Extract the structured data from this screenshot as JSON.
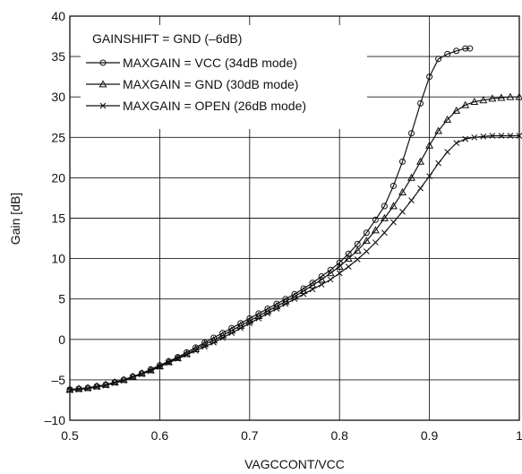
{
  "chart_data": {
    "type": "line",
    "title": "",
    "xlabel": "VAGCCONT/VCC",
    "ylabel": "Gain [dB]",
    "xlim": [
      0.5,
      1.0
    ],
    "ylim": [
      -10,
      40
    ],
    "xticks": [
      "0.5",
      "0.6",
      "0.7",
      "0.8",
      "0.9",
      "1"
    ],
    "yticks": [
      "–10",
      "–5",
      "0",
      "5",
      "10",
      "15",
      "20",
      "25",
      "30",
      "35",
      "40"
    ],
    "grid": true,
    "legend_title": "GAINSHIFT = GND (–6dB)",
    "legend_position": "top-left",
    "series": [
      {
        "name": "MAXGAIN = VCC (34dB mode)",
        "marker": "circle",
        "x": [
          0.5,
          0.51,
          0.52,
          0.53,
          0.54,
          0.55,
          0.56,
          0.57,
          0.58,
          0.59,
          0.6,
          0.61,
          0.62,
          0.63,
          0.64,
          0.65,
          0.66,
          0.67,
          0.68,
          0.69,
          0.7,
          0.71,
          0.72,
          0.73,
          0.74,
          0.75,
          0.76,
          0.77,
          0.78,
          0.79,
          0.8,
          0.81,
          0.82,
          0.83,
          0.84,
          0.85,
          0.86,
          0.87,
          0.88,
          0.89,
          0.9,
          0.91,
          0.92,
          0.93,
          0.94,
          0.945
        ],
        "y": [
          -6.2,
          -6.1,
          -6.0,
          -5.8,
          -5.6,
          -5.3,
          -5.0,
          -4.6,
          -4.2,
          -3.7,
          -3.2,
          -2.7,
          -2.2,
          -1.6,
          -1.0,
          -0.4,
          0.2,
          0.8,
          1.4,
          2.0,
          2.6,
          3.2,
          3.8,
          4.4,
          5.0,
          5.6,
          6.3,
          7.0,
          7.8,
          8.6,
          9.5,
          10.6,
          11.8,
          13.2,
          14.8,
          16.5,
          19.0,
          22.0,
          25.5,
          29.2,
          32.5,
          34.7,
          35.3,
          35.7,
          36.0,
          36.0
        ]
      },
      {
        "name": "MAXGAIN = GND (30dB mode)",
        "marker": "triangle",
        "x": [
          0.5,
          0.51,
          0.52,
          0.53,
          0.54,
          0.55,
          0.56,
          0.57,
          0.58,
          0.59,
          0.6,
          0.61,
          0.62,
          0.63,
          0.64,
          0.65,
          0.66,
          0.67,
          0.68,
          0.69,
          0.7,
          0.71,
          0.72,
          0.73,
          0.74,
          0.75,
          0.76,
          0.77,
          0.78,
          0.79,
          0.8,
          0.81,
          0.82,
          0.83,
          0.84,
          0.85,
          0.86,
          0.87,
          0.88,
          0.89,
          0.9,
          0.91,
          0.92,
          0.93,
          0.94,
          0.95,
          0.96,
          0.97,
          0.98,
          0.99,
          1.0
        ],
        "y": [
          -6.2,
          -6.1,
          -6.0,
          -5.8,
          -5.6,
          -5.3,
          -5.0,
          -4.6,
          -4.2,
          -3.8,
          -3.3,
          -2.8,
          -2.3,
          -1.8,
          -1.2,
          -0.6,
          -0.1,
          0.5,
          1.1,
          1.7,
          2.3,
          2.9,
          3.5,
          4.1,
          4.7,
          5.3,
          6.0,
          6.7,
          7.4,
          8.2,
          9.0,
          10.0,
          11.0,
          12.2,
          13.5,
          15.0,
          16.5,
          18.2,
          20.0,
          22.0,
          24.0,
          25.8,
          27.2,
          28.3,
          29.0,
          29.4,
          29.6,
          29.8,
          29.9,
          30.0,
          30.0
        ]
      },
      {
        "name": "MAXGAIN = OPEN (26dB mode)",
        "marker": "x",
        "x": [
          0.5,
          0.51,
          0.52,
          0.53,
          0.54,
          0.55,
          0.56,
          0.57,
          0.58,
          0.59,
          0.6,
          0.61,
          0.62,
          0.63,
          0.64,
          0.65,
          0.66,
          0.67,
          0.68,
          0.69,
          0.7,
          0.71,
          0.72,
          0.73,
          0.74,
          0.75,
          0.76,
          0.77,
          0.78,
          0.79,
          0.8,
          0.81,
          0.82,
          0.83,
          0.84,
          0.85,
          0.86,
          0.87,
          0.88,
          0.89,
          0.9,
          0.91,
          0.92,
          0.93,
          0.94,
          0.95,
          0.96,
          0.97,
          0.98,
          0.99,
          1.0
        ],
        "y": [
          -6.3,
          -6.2,
          -6.1,
          -5.9,
          -5.7,
          -5.4,
          -5.1,
          -4.7,
          -4.3,
          -3.9,
          -3.4,
          -2.9,
          -2.4,
          -1.9,
          -1.4,
          -0.9,
          -0.4,
          0.2,
          0.8,
          1.4,
          2.0,
          2.6,
          3.2,
          3.8,
          4.4,
          5.0,
          5.6,
          6.2,
          6.8,
          7.4,
          8.2,
          9.0,
          9.9,
          10.9,
          12.0,
          13.2,
          14.5,
          15.8,
          17.2,
          18.7,
          20.2,
          21.8,
          23.2,
          24.3,
          24.8,
          25.0,
          25.1,
          25.2,
          25.2,
          25.2,
          25.2
        ]
      }
    ]
  }
}
